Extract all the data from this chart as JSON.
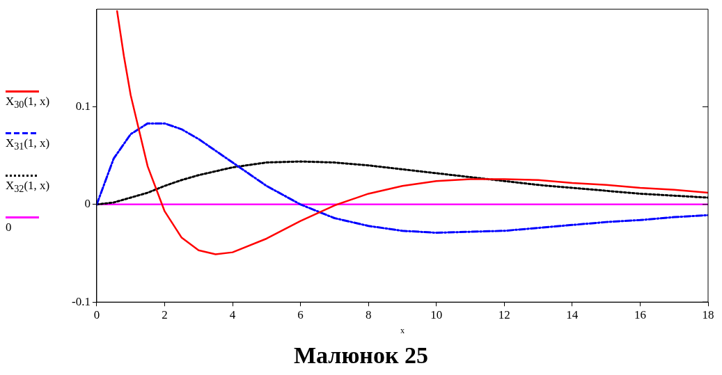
{
  "chart_data": {
    "type": "line",
    "xlabel": "x",
    "annotations": [
      "Малюнок 25"
    ],
    "xlim": [
      0,
      18
    ],
    "xticks": [
      0,
      2,
      4,
      6,
      8,
      10,
      12,
      14,
      16,
      18
    ],
    "ylim": [
      -0.1,
      0.2
    ],
    "yticks": [
      -0.1,
      0,
      0.1
    ],
    "grid": false,
    "legend": "left",
    "marker": "none",
    "series": [
      {
        "name": "X$_{30}$(1, x)",
        "color": "#ff0000",
        "line_style": "solid",
        "x": [
          0.6,
          0.8,
          1,
          1.5,
          2,
          2.5,
          3,
          3.5,
          4,
          5,
          6,
          7,
          8,
          9,
          10,
          11,
          12,
          13,
          14,
          15,
          16,
          17,
          18
        ],
        "values": [
          0.198,
          0.152,
          0.112,
          0.039,
          -0.007,
          -0.034,
          -0.047,
          -0.051,
          -0.049,
          -0.035,
          -0.017,
          -0.001,
          0.011,
          0.019,
          0.024,
          0.026,
          0.026,
          0.025,
          0.022,
          0.02,
          0.017,
          0.015,
          0.012
        ]
      },
      {
        "name": "X$_{31}$(1, x)",
        "color": "#0000ff",
        "line_style": "dashed",
        "x": [
          0,
          0.5,
          1,
          1.5,
          2,
          2.5,
          3,
          3.5,
          4,
          5,
          6,
          7,
          8,
          9,
          10,
          11,
          12,
          13,
          14,
          15,
          16,
          17,
          18
        ],
        "values": [
          0,
          0.047,
          0.072,
          0.083,
          0.083,
          0.077,
          0.067,
          0.055,
          0.043,
          0.019,
          0,
          -0.014,
          -0.022,
          -0.027,
          -0.029,
          -0.028,
          -0.027,
          -0.024,
          -0.021,
          -0.018,
          -0.016,
          -0.013,
          -0.011
        ]
      },
      {
        "name": "X$_{32}$(1, x)",
        "color": "#000000",
        "line_style": "dotted",
        "x": [
          0,
          0.5,
          1,
          1.5,
          2,
          2.5,
          3,
          3.5,
          4,
          5,
          6,
          7,
          8,
          9,
          10,
          11,
          12,
          13,
          14,
          15,
          16,
          17,
          18
        ],
        "values": [
          0,
          0.002,
          0.007,
          0.012,
          0.019,
          0.025,
          0.03,
          0.034,
          0.038,
          0.043,
          0.044,
          0.043,
          0.04,
          0.036,
          0.032,
          0.028,
          0.024,
          0.02,
          0.017,
          0.014,
          0.011,
          0.009,
          0.007
        ]
      },
      {
        "name": "0",
        "color": "#ff00ff",
        "line_style": "solid",
        "x": [
          0,
          18
        ],
        "values": [
          0,
          0
        ]
      }
    ]
  }
}
